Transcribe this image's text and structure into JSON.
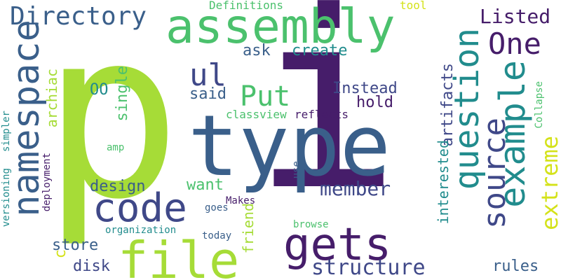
{
  "colors": {
    "lime": "#a6dc37",
    "purple": "#461d6a",
    "darkblue": "#3a5f8a",
    "teal": "#218c8d",
    "green": "#4bc16d",
    "lightgreen": "#5ec962",
    "indigo": "#3f4888",
    "yellow": "#d4e21a"
  },
  "words": [
    {
      "text": "p",
      "color": "lime"
    },
    {
      "text": "i",
      "color": "purple"
    },
    {
      "text": "type",
      "color": "darkblue"
    },
    {
      "text": "assembly",
      "color": "green"
    },
    {
      "text": "file",
      "color": "lime"
    },
    {
      "text": "code",
      "color": "indigo"
    },
    {
      "text": "gets",
      "color": "purple"
    },
    {
      "text": "namespace",
      "color": "darkblue"
    },
    {
      "text": "question",
      "color": "teal"
    },
    {
      "text": "example",
      "color": "teal"
    },
    {
      "text": "source",
      "color": "indigo"
    },
    {
      "text": "Directory",
      "color": "darkblue"
    },
    {
      "text": "One",
      "color": "purple"
    },
    {
      "text": "Put",
      "color": "green"
    },
    {
      "text": "ul",
      "color": "indigo"
    },
    {
      "text": "structure",
      "color": "indigo"
    },
    {
      "text": "extreme",
      "color": "yellow"
    },
    {
      "text": "member",
      "color": "indigo"
    },
    {
      "text": "Listed",
      "color": "purple"
    },
    {
      "text": "create",
      "color": "teal"
    },
    {
      "text": "ask",
      "color": "darkblue"
    },
    {
      "text": "Instead",
      "color": "indigo"
    },
    {
      "text": "hold",
      "color": "purple"
    },
    {
      "text": "said",
      "color": "darkblue"
    },
    {
      "text": "design",
      "color": "darkblue"
    },
    {
      "text": "want",
      "color": "green"
    },
    {
      "text": "disk",
      "color": "indigo"
    },
    {
      "text": "store",
      "color": "darkblue"
    },
    {
      "text": "single",
      "color": "green"
    },
    {
      "text": "artifacts",
      "color": "indigo"
    },
    {
      "text": "interested",
      "color": "teal"
    },
    {
      "text": "archiac",
      "color": "lime"
    },
    {
      "text": "friend",
      "color": "lime"
    },
    {
      "text": "rules",
      "color": "darkblue"
    },
    {
      "text": "OO",
      "color": "teal"
    },
    {
      "text": "classview",
      "color": "green"
    },
    {
      "text": "reflects",
      "color": "purple"
    },
    {
      "text": "Definitions",
      "color": "green"
    },
    {
      "text": "tool",
      "color": "yellow"
    },
    {
      "text": "Collapse",
      "color": "green"
    },
    {
      "text": "versioning",
      "color": "teal"
    },
    {
      "text": "simpler",
      "color": "teal"
    },
    {
      "text": "deployment",
      "color": "purple"
    },
    {
      "text": "amp",
      "color": "green"
    },
    {
      "text": "use",
      "color": "darkblue"
    },
    {
      "text": "Makes",
      "color": "purple"
    },
    {
      "text": "goes",
      "color": "darkblue"
    },
    {
      "text": "organization",
      "color": "teal"
    },
    {
      "text": "today",
      "color": "darkblue"
    },
    {
      "text": "browse",
      "color": "green"
    },
    {
      "text": "c",
      "color": "yellow"
    }
  ]
}
